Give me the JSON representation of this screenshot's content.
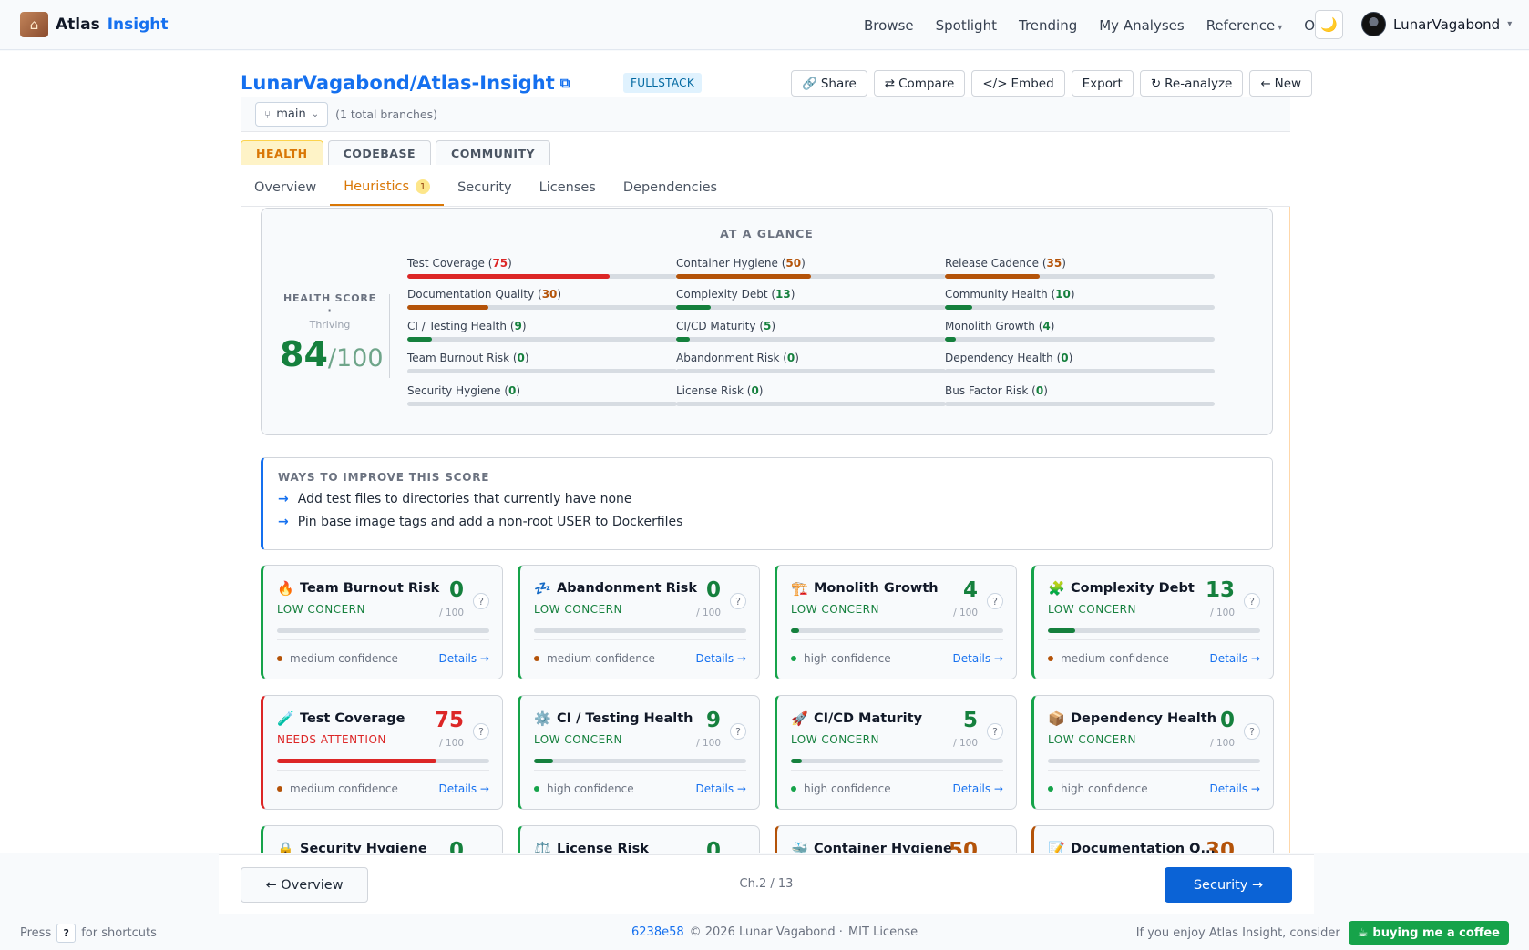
{
  "brand": {
    "name": "Atlas",
    "accent": "Insight",
    "logo_icon": "temple-logo-icon"
  },
  "nav": {
    "links": [
      "Browse",
      "Spotlight",
      "Trending",
      "My Analyses",
      "Reference",
      "Ops"
    ],
    "theme_icon": "moon-icon",
    "user": "LunarVagabond"
  },
  "repo": {
    "title": "LunarVagabond/Atlas-Insight",
    "type_badge": "FULLSTACK"
  },
  "actions": [
    {
      "icon": "🔗",
      "label": "Share",
      "icon_name": "link-icon"
    },
    {
      "icon": "⇄",
      "label": "Compare",
      "icon_name": "swap-icon"
    },
    {
      "icon": "</>",
      "label": "Embed",
      "icon_name": "code-icon"
    },
    {
      "icon": "",
      "label": "Export",
      "icon_name": ""
    },
    {
      "icon": "↻",
      "label": "Re-analyze",
      "icon_name": "refresh-icon"
    },
    {
      "icon": "←",
      "label": "New",
      "icon_name": "arrow-left-icon"
    }
  ],
  "branch": {
    "name": "main",
    "note": "(1 total branches)"
  },
  "top_tabs": [
    {
      "label": "HEALTH",
      "active": true
    },
    {
      "label": "CODEBASE",
      "active": false
    },
    {
      "label": "COMMUNITY",
      "active": false
    }
  ],
  "sub_tabs": [
    {
      "label": "Overview",
      "active": false,
      "count": ""
    },
    {
      "label": "Heuristics",
      "active": true,
      "count": "1"
    },
    {
      "label": "Security",
      "active": false,
      "count": ""
    },
    {
      "label": "Licenses",
      "active": false,
      "count": ""
    },
    {
      "label": "Dependencies",
      "active": false,
      "count": ""
    }
  ],
  "glance": {
    "title": "AT A GLANCE",
    "score_label": "HEALTH SCORE ·",
    "score_status": "Thriving",
    "score": "84",
    "score_max": "/100",
    "metrics": [
      {
        "label": "Test Coverage",
        "value": "75",
        "color": "#dc2626"
      },
      {
        "label": "Container Hygiene",
        "value": "50",
        "color": "#b45309"
      },
      {
        "label": "Release Cadence",
        "value": "35",
        "color": "#b45309"
      },
      {
        "label": "Documentation Quality",
        "value": "30",
        "color": "#b45309"
      },
      {
        "label": "Complexity Debt",
        "value": "13",
        "color": "#15803d"
      },
      {
        "label": "Community Health",
        "value": "10",
        "color": "#15803d"
      },
      {
        "label": "CI / Testing Health",
        "value": "9",
        "color": "#15803d"
      },
      {
        "label": "CI/CD Maturity",
        "value": "5",
        "color": "#15803d"
      },
      {
        "label": "Monolith Growth",
        "value": "4",
        "color": "#15803d"
      },
      {
        "label": "Team Burnout Risk",
        "value": "0",
        "color": "#15803d"
      },
      {
        "label": "Abandonment Risk",
        "value": "0",
        "color": "#15803d"
      },
      {
        "label": "Dependency Health",
        "value": "0",
        "color": "#15803d"
      },
      {
        "label": "Security Hygiene",
        "value": "0",
        "color": "#15803d"
      },
      {
        "label": "License Risk",
        "value": "0",
        "color": "#15803d"
      },
      {
        "label": "Bus Factor Risk",
        "value": "0",
        "color": "#15803d"
      }
    ]
  },
  "improve": {
    "title": "WAYS TO IMPROVE THIS SCORE",
    "items": [
      "Add test files to directories that currently have none",
      "Pin base image tags and add a non-root USER to Dockerfiles"
    ]
  },
  "cards": [
    {
      "icon": "🔥",
      "icon_name": "fire-icon",
      "title": "Team Burnout Risk",
      "status": "LOW CONCERN",
      "value": "0",
      "max": "/ 100",
      "confidence": "medium confidence",
      "level": "low",
      "conf": "medium"
    },
    {
      "icon": "💤",
      "icon_name": "sleep-icon",
      "title": "Abandonment Risk",
      "status": "LOW CONCERN",
      "value": "0",
      "max": "/ 100",
      "confidence": "medium confidence",
      "level": "low",
      "conf": "medium"
    },
    {
      "icon": "🏗️",
      "icon_name": "crane-icon",
      "title": "Monolith Growth",
      "status": "LOW CONCERN",
      "value": "4",
      "max": "/ 100",
      "confidence": "high confidence",
      "level": "low",
      "conf": "high"
    },
    {
      "icon": "🧩",
      "icon_name": "puzzle-icon",
      "title": "Complexity Debt",
      "status": "LOW CONCERN",
      "value": "13",
      "max": "/ 100",
      "confidence": "medium confidence",
      "level": "low",
      "conf": "medium"
    },
    {
      "icon": "🧪",
      "icon_name": "test-tube-icon",
      "title": "Test Coverage",
      "status": "NEEDS ATTENTION",
      "value": "75",
      "max": "/ 100",
      "confidence": "medium confidence",
      "level": "attn",
      "conf": "medium"
    },
    {
      "icon": "⚙️",
      "icon_name": "gear-icon",
      "title": "CI / Testing Health",
      "status": "LOW CONCERN",
      "value": "9",
      "max": "/ 100",
      "confidence": "high confidence",
      "level": "low",
      "conf": "high"
    },
    {
      "icon": "🚀",
      "icon_name": "rocket-icon",
      "title": "CI/CD Maturity",
      "status": "LOW CONCERN",
      "value": "5",
      "max": "/ 100",
      "confidence": "high confidence",
      "level": "low",
      "conf": "high"
    },
    {
      "icon": "📦",
      "icon_name": "package-icon",
      "title": "Dependency Health",
      "status": "LOW CONCERN",
      "value": "0",
      "max": "/ 100",
      "confidence": "high confidence",
      "level": "low",
      "conf": "high"
    },
    {
      "icon": "🔒",
      "icon_name": "lock-icon",
      "title": "Security Hygiene",
      "status": "",
      "value": "0",
      "max": "",
      "confidence": "",
      "level": "low",
      "conf": "high"
    },
    {
      "icon": "⚖️",
      "icon_name": "scales-icon",
      "title": "License Risk",
      "status": "",
      "value": "0",
      "max": "",
      "confidence": "",
      "level": "low",
      "conf": "high"
    },
    {
      "icon": "🐳",
      "icon_name": "whale-icon",
      "title": "Container Hygiene",
      "status": "",
      "value": "50",
      "max": "",
      "confidence": "",
      "level": "warn",
      "conf": "high"
    },
    {
      "icon": "📝",
      "icon_name": "memo-icon",
      "title": "Documentation Q...",
      "status": "",
      "value": "30",
      "max": "",
      "confidence": "",
      "level": "warn",
      "conf": "high"
    }
  ],
  "card_help": "?",
  "card_details": "Details →",
  "pager": {
    "prev": "← Overview",
    "count": "Ch.2 / 13",
    "next": "Security →"
  },
  "footer": {
    "press": "Press",
    "key": "?",
    "shortcuts": "for shortcuts",
    "hash": "6238e58",
    "copyright": "© 2026 Lunar Vagabond ·",
    "license": "MIT License",
    "enjoy": "If you enjoy Atlas Insight, consider",
    "coffee": "buying me a coffee",
    "coffee_icon": "☕"
  }
}
